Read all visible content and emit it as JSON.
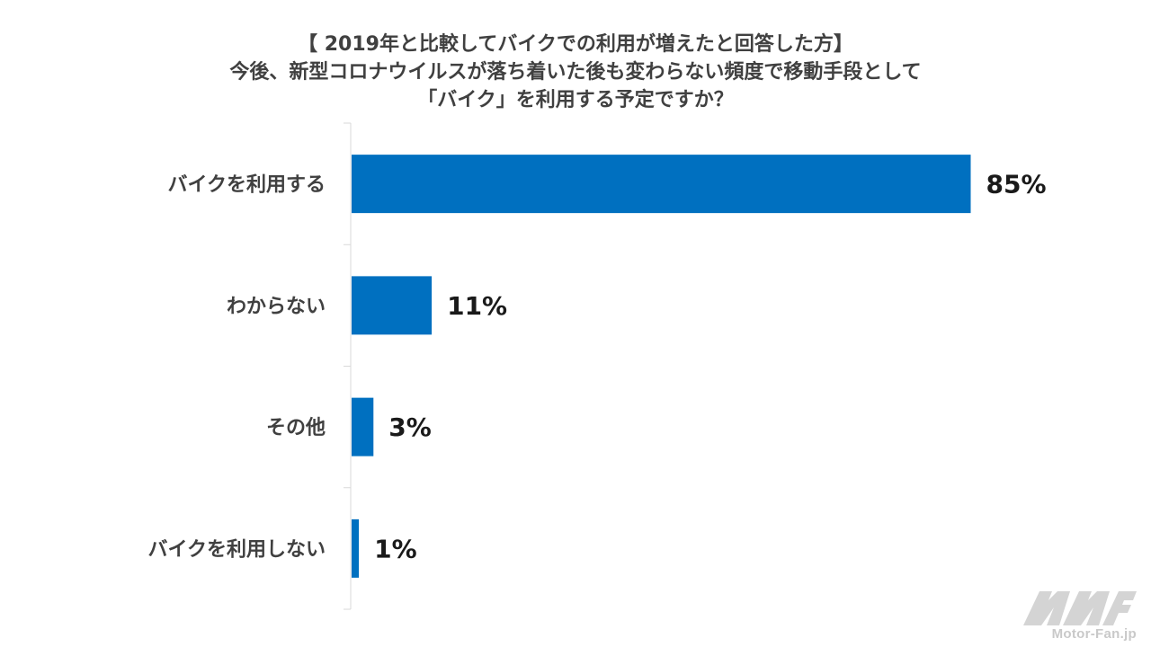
{
  "title_lines": [
    "【 2019年と比較してバイクでの利用が増えたと回答した方】",
    "今後、新型コロナウイルスが落ち着いた後も変わらない頻度で移動手段として",
    "「バイク」を利用する予定ですか？"
  ],
  "chart_data": {
    "type": "bar",
    "orientation": "horizontal",
    "categories": [
      "バイクを利用する",
      "わからない",
      "その他",
      "バイクを利用しない"
    ],
    "values": [
      85,
      11,
      3,
      1
    ],
    "value_labels": [
      "85%",
      "11%",
      "3%",
      "1%"
    ],
    "unit": "%",
    "xlim": [
      0,
      100
    ],
    "bar_color": "#0070c0",
    "grid": false,
    "legend": "none"
  },
  "watermark": {
    "logo_icon": "motor-fan-logo-icon",
    "text": "Motor-Fan.jp",
    "color": "#c9c9c9"
  }
}
